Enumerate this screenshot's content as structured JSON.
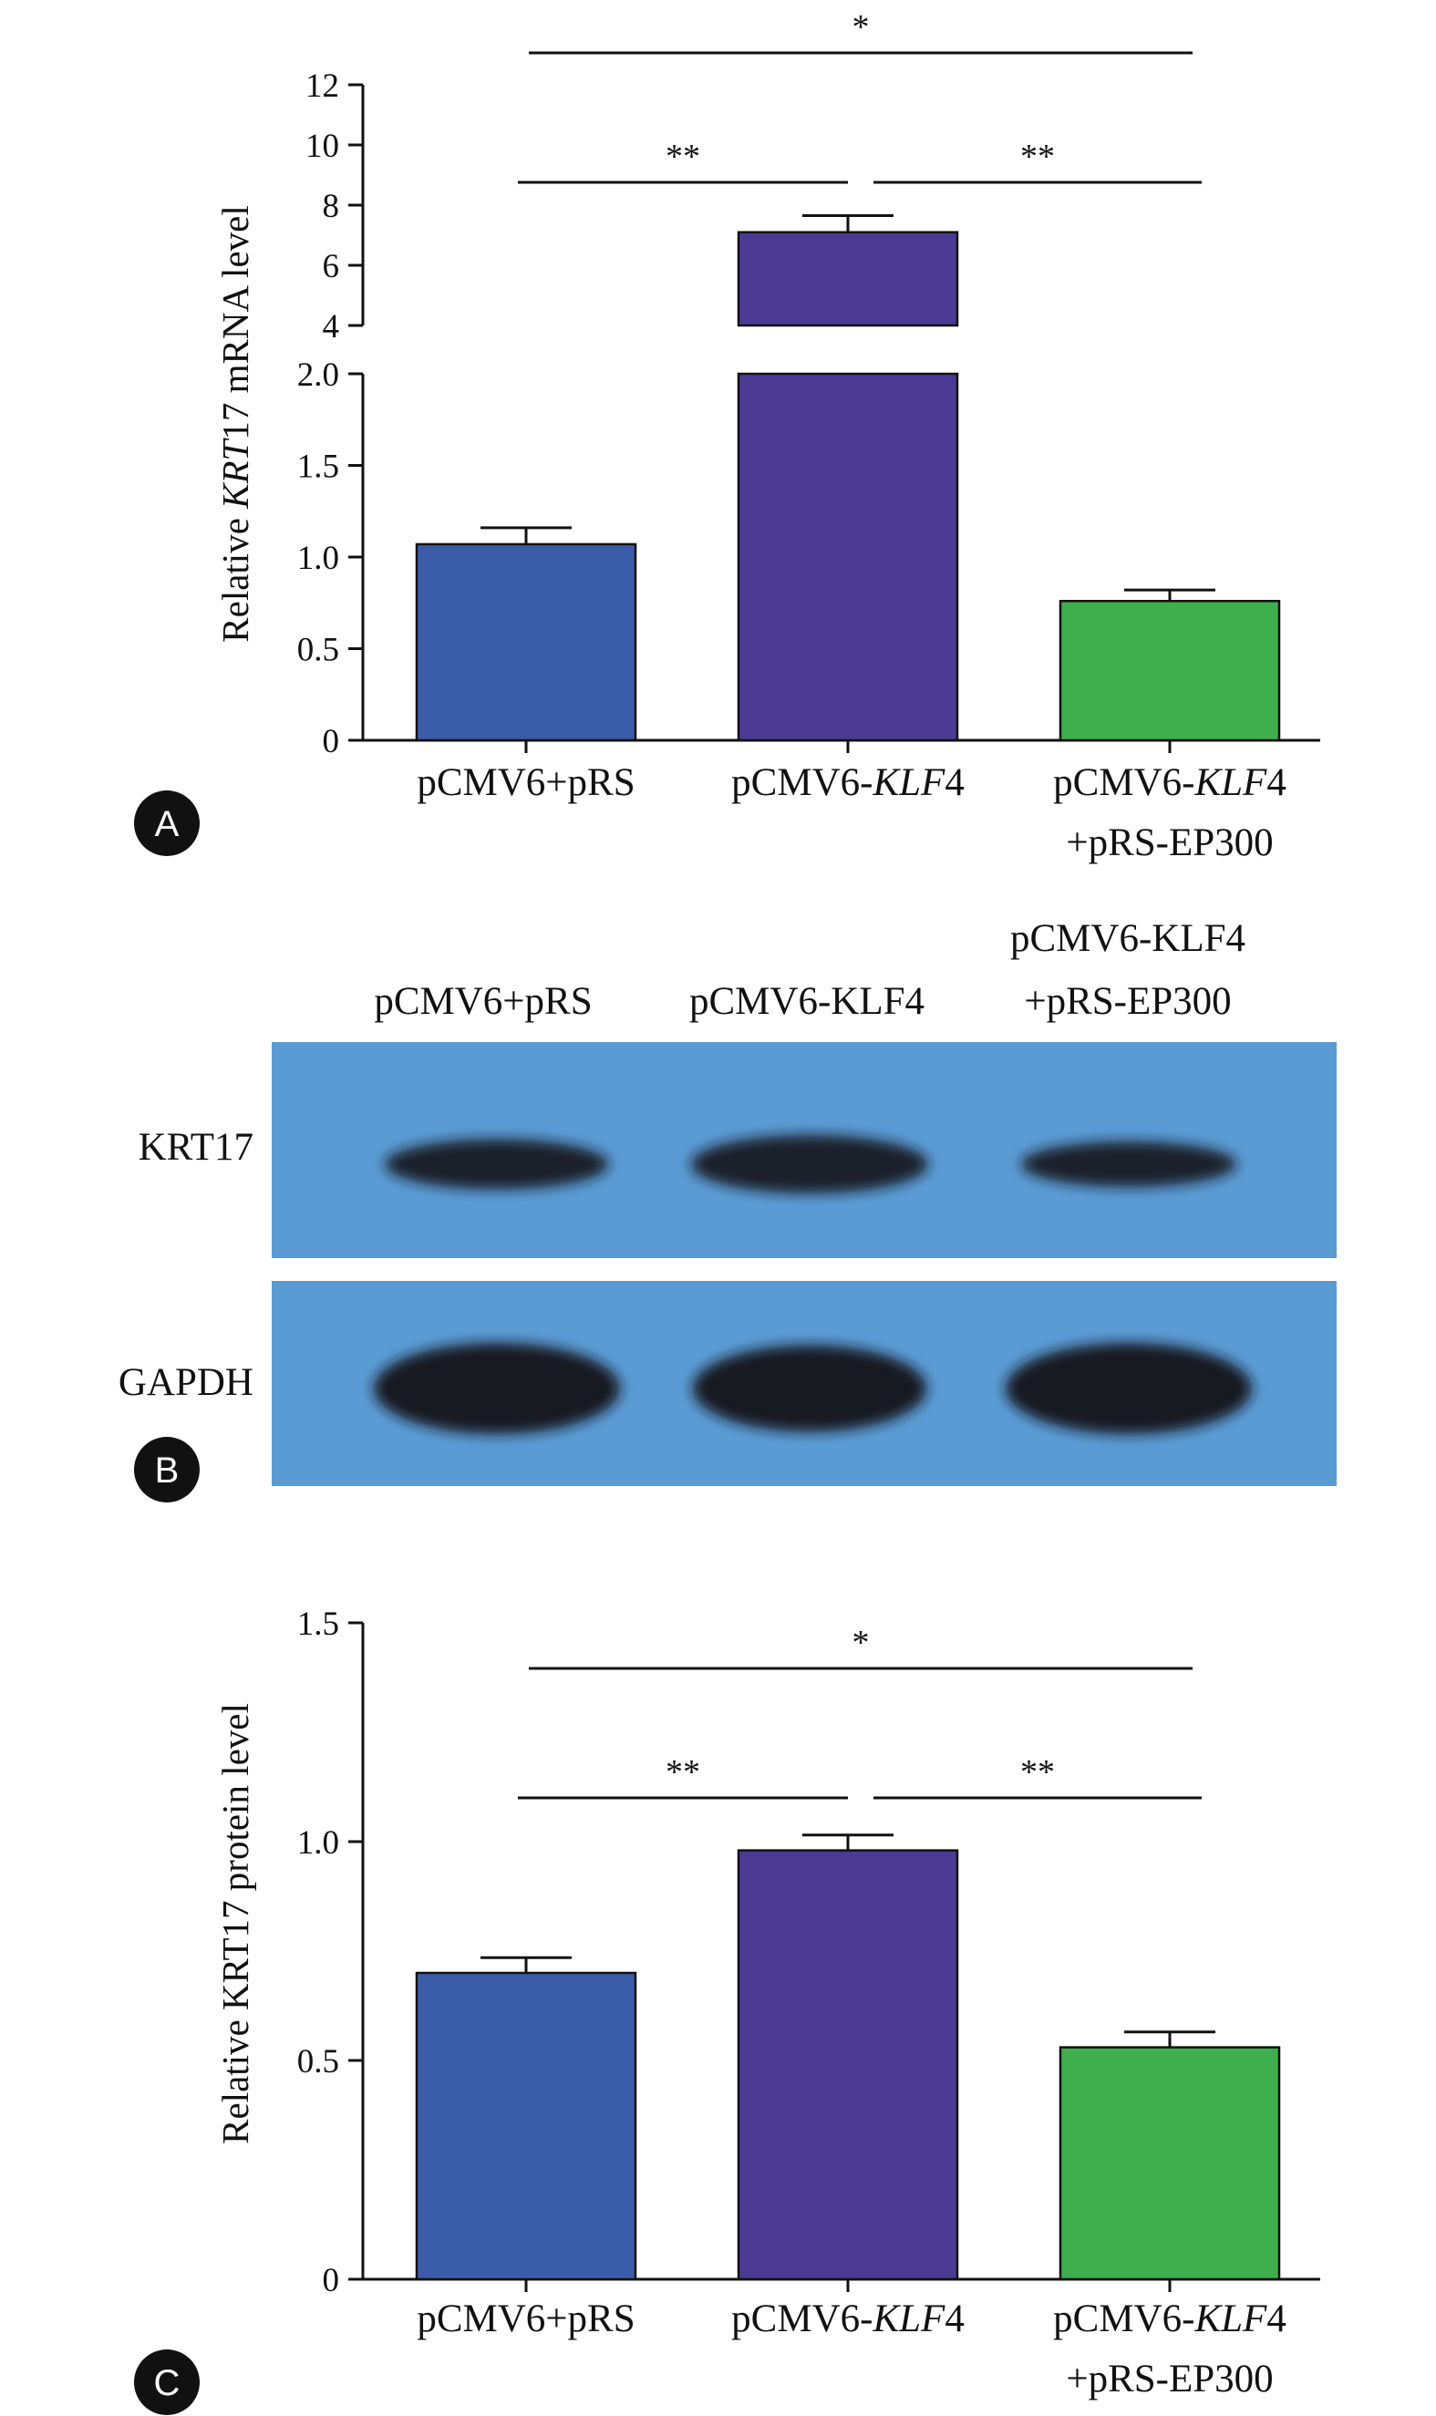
{
  "colors": {
    "bar1": "#3a5ca8",
    "bar2": "#4a3a92",
    "bar3": "#3fae4c",
    "blot_bg": "#5b9bd3",
    "band": "#15151a",
    "axis": "#111111"
  },
  "panels": {
    "a": {
      "letter": "A"
    },
    "b": {
      "letter": "B",
      "lanes": [
        "pCMV6+pRS",
        "pCMV6-KLF4",
        "pCMV6-KLF4",
        "+pRS-EP300"
      ],
      "rows": [
        "KRT17",
        "GAPDH"
      ],
      "band_intensity": {
        "KRT17": [
          0.75,
          1.0,
          0.6
        ],
        "GAPDH": [
          1.0,
          0.95,
          1.0
        ]
      }
    },
    "c": {
      "letter": "C"
    }
  },
  "chart_data": [
    {
      "type": "bar",
      "panel": "A",
      "ylabel_pre": "Relative ",
      "ylabel_it": "KRT",
      "ylabel_post": "17 mRNA level",
      "categories": [
        {
          "a": "pCMV6+pRS",
          "it": "",
          "b": "",
          "line2": ""
        },
        {
          "a": "pCMV6-",
          "it": "KLF",
          "b": "4",
          "line2": ""
        },
        {
          "a": "pCMV6-",
          "it": "KLF",
          "b": "4",
          "line2": "+pRS-EP300"
        }
      ],
      "values": [
        1.07,
        7.1,
        0.76
      ],
      "errors": [
        0.09,
        0.55,
        0.06
      ],
      "broken_axis": true,
      "lower_ylim": [
        0,
        2.0
      ],
      "upper_ylim": [
        4,
        12
      ],
      "lower_ticks": [
        "0",
        "0.5",
        "1.0",
        "1.5",
        "2.0"
      ],
      "upper_ticks": [
        "4",
        "6",
        "8",
        "10",
        "12"
      ],
      "significance": [
        {
          "from": 0,
          "to": 1,
          "label": "**"
        },
        {
          "from": 1,
          "to": 2,
          "label": "**"
        },
        {
          "from": 0,
          "to": 2,
          "label": "*"
        }
      ]
    },
    {
      "type": "bar",
      "panel": "C",
      "ylabel_pre": "Relative KRT17 protein level",
      "ylabel_it": "",
      "ylabel_post": "",
      "categories": [
        {
          "a": "pCMV6+pRS",
          "it": "",
          "b": "",
          "line2": ""
        },
        {
          "a": "pCMV6-",
          "it": "KLF",
          "b": "4",
          "line2": ""
        },
        {
          "a": "pCMV6-",
          "it": "KLF",
          "b": "4",
          "line2": "+pRS-EP300"
        }
      ],
      "values": [
        0.7,
        0.98,
        0.53
      ],
      "errors": [
        0.035,
        0.035,
        0.035
      ],
      "ylim": [
        0,
        1.5
      ],
      "ticks": [
        "0",
        "0.5",
        "1.0",
        "1.5"
      ],
      "significance": [
        {
          "from": 0,
          "to": 1,
          "label": "**"
        },
        {
          "from": 1,
          "to": 2,
          "label": "**"
        },
        {
          "from": 0,
          "to": 2,
          "label": "*"
        }
      ]
    }
  ]
}
